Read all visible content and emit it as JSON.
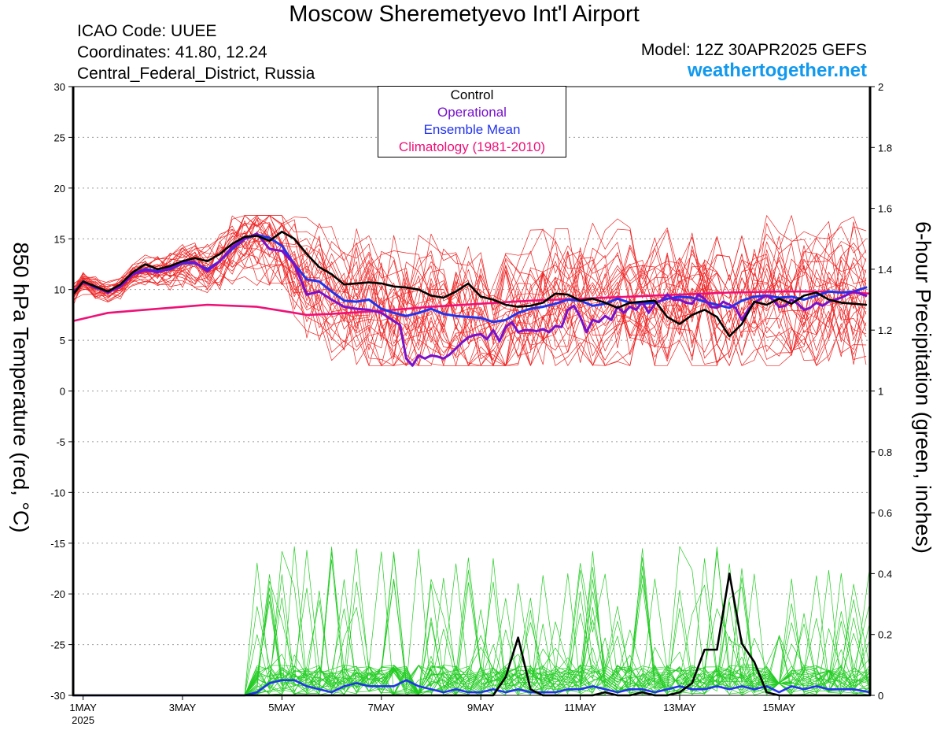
{
  "header": {
    "title": "Moscow Sheremetyevo Int'l Airport",
    "icao": "ICAO Code: UUEE",
    "coords": "Coordinates: 41.80, 12.24",
    "region": "Central_Federal_District, Russia",
    "model": "Model: 12Z 30APR2025 GEFS",
    "site": "weathertogether.net"
  },
  "legend": {
    "control": "Control",
    "operational": "Operational",
    "ensemble_mean": "Ensemble Mean",
    "climatology": "Climatology (1981-2010)"
  },
  "colors": {
    "control": "#000000",
    "operational": "#7711cc",
    "ensemble_mean": "#2233ee",
    "climatology": "#ee1177",
    "members_temp": "#ee2222",
    "members_precip": "#22cc22",
    "site": "#1199ee"
  },
  "chart_data": {
    "type": "line",
    "ylabel": "850 hPa Temperature (red, °C)",
    "y2label": "6-hour Precipitation (green, inches)",
    "xlim": [
      0.8,
      16.83
    ],
    "ylim": [
      -30,
      30
    ],
    "y2lim": [
      0,
      2
    ],
    "x_ticks": [
      {
        "v": 1,
        "label": "1MAY",
        "sub": "2025"
      },
      {
        "v": 3,
        "label": "3MAY"
      },
      {
        "v": 5,
        "label": "5MAY"
      },
      {
        "v": 7,
        "label": "7MAY"
      },
      {
        "v": 9,
        "label": "9MAY"
      },
      {
        "v": 11,
        "label": "11MAY"
      },
      {
        "v": 13,
        "label": "13MAY"
      },
      {
        "v": 15,
        "label": "15MAY"
      }
    ],
    "y_ticks": [
      30,
      25,
      20,
      15,
      10,
      5,
      0,
      -5,
      -10,
      -15,
      -20,
      -25,
      -30
    ],
    "y2_ticks": [
      2,
      1.8,
      1.6,
      1.4,
      1.2,
      1,
      0.8,
      0.6,
      0.4,
      0.2,
      0
    ],
    "grid": true,
    "series": [
      {
        "name": "Control",
        "key": "control",
        "axis": "temp",
        "x": [
          0.8,
          1.0,
          1.25,
          1.5,
          1.75,
          2.0,
          2.25,
          2.5,
          2.75,
          3.0,
          3.25,
          3.5,
          3.75,
          4.0,
          4.25,
          4.5,
          4.75,
          5.0,
          5.25,
          5.5,
          5.75,
          6.0,
          6.25,
          6.5,
          6.75,
          7.0,
          7.25,
          7.5,
          7.75,
          8.0,
          8.25,
          8.5,
          8.75,
          9.0,
          9.25,
          9.5,
          9.75,
          10.0,
          10.25,
          10.5,
          10.75,
          11.0,
          11.25,
          11.5,
          11.75,
          12.0,
          12.25,
          12.5,
          12.75,
          13.0,
          13.25,
          13.5,
          13.75,
          14.0,
          14.25,
          14.5,
          14.75,
          15.0,
          15.25,
          15.5,
          15.75,
          16.0,
          16.25,
          16.5,
          16.75
        ],
        "y": [
          9.5,
          10.8,
          10.3,
          9.8,
          10.5,
          11.7,
          12.5,
          12.0,
          12.3,
          12.8,
          13.1,
          12.8,
          13.5,
          14.5,
          15.2,
          15.3,
          14.8,
          15.7,
          15.0,
          13.5,
          12.2,
          11.5,
          10.5,
          10.6,
          10.7,
          10.6,
          10.3,
          10.2,
          10.0,
          9.4,
          9.2,
          9.8,
          10.6,
          9.3,
          9.0,
          8.5,
          8.3,
          8.4,
          8.7,
          9.6,
          9.5,
          8.9,
          9.1,
          8.7,
          8.2,
          8.7,
          8.8,
          8.9,
          7.3,
          6.6,
          7.5,
          8.0,
          7.3,
          5.4,
          6.6,
          8.8,
          8.5,
          9.1,
          8.6,
          9.4,
          9.7,
          9.0,
          8.7,
          8.6,
          8.5
        ]
      },
      {
        "name": "Operational",
        "key": "operational",
        "axis": "temp",
        "x": [
          0.8,
          1.0,
          1.25,
          1.5,
          1.75,
          2.0,
          2.25,
          2.5,
          2.75,
          3.0,
          3.25,
          3.5,
          3.75,
          4.0,
          4.25,
          4.5,
          4.75,
          5.0,
          5.25,
          5.5,
          5.75,
          6.0,
          6.25,
          6.5,
          6.75,
          7.0,
          7.25,
          7.375,
          7.5,
          7.625,
          7.75,
          7.875,
          8.0,
          8.125,
          8.25,
          8.375,
          8.5,
          8.625,
          8.75,
          8.875,
          9.0,
          9.125,
          9.25,
          9.375,
          9.5,
          9.625,
          9.75,
          9.875,
          10.0,
          10.125,
          10.25,
          10.375,
          10.5,
          10.625,
          10.75,
          10.875,
          11.0,
          11.125,
          11.25,
          11.375,
          11.5,
          11.625,
          11.75,
          11.875,
          12.0,
          12.125,
          12.25,
          12.375,
          12.5,
          12.625,
          12.75,
          12.875,
          13.0,
          13.125,
          13.25,
          13.375,
          13.5,
          13.625,
          13.75,
          13.875,
          14.0,
          14.125,
          14.25,
          14.375,
          14.5,
          14.625,
          14.75,
          14.875,
          15.0,
          15.125,
          15.25,
          15.375,
          15.5,
          15.625,
          15.75,
          15.875,
          16.0,
          16.25,
          16.5,
          16.75
        ],
        "y": [
          9.7,
          10.7,
          10.3,
          9.7,
          10.3,
          11.5,
          11.9,
          11.7,
          12.1,
          12.7,
          12.7,
          11.8,
          12.8,
          14.2,
          15.0,
          15.5,
          14.0,
          13.8,
          12.5,
          9.5,
          9.8,
          9.0,
          8.3,
          8.1,
          8.0,
          7.7,
          6.9,
          6.5,
          3.2,
          2.5,
          3.5,
          3.2,
          3.5,
          3.4,
          3.2,
          3.6,
          4.2,
          4.8,
          5.3,
          5.5,
          5.6,
          5.1,
          6.0,
          4.9,
          6.3,
          6.8,
          5.8,
          6.0,
          6.0,
          5.9,
          6.1,
          5.8,
          6.4,
          6.3,
          8.0,
          8.4,
          7.3,
          5.8,
          7.0,
          6.8,
          7.4,
          7.0,
          8.3,
          7.7,
          8.3,
          8.0,
          8.8,
          7.7,
          8.6,
          8.9,
          9.5,
          9.0,
          9.0,
          8.7,
          8.6,
          9.5,
          9.1,
          8.3,
          8.2,
          8.8,
          8.5,
          8.2,
          7.0,
          8.0,
          8.7,
          9.1,
          9.4,
          9.0,
          8.3,
          8.4,
          9.0,
          8.6,
          8.0,
          8.2,
          8.7,
          8.4,
          8.8,
          9.2,
          9.8,
          9.4
        ]
      },
      {
        "name": "Ensemble Mean",
        "key": "ensemble_mean",
        "axis": "temp",
        "x": [
          0.8,
          1.0,
          1.25,
          1.5,
          1.75,
          2.0,
          2.25,
          2.5,
          2.75,
          3.0,
          3.25,
          3.5,
          3.75,
          4.0,
          4.25,
          4.5,
          4.75,
          5.0,
          5.25,
          5.5,
          5.75,
          6.0,
          6.25,
          6.5,
          6.75,
          7.0,
          7.25,
          7.5,
          7.75,
          8.0,
          8.25,
          8.5,
          8.75,
          9.0,
          9.25,
          9.5,
          9.75,
          10.0,
          10.25,
          10.5,
          10.75,
          11.0,
          11.25,
          11.5,
          11.75,
          12.0,
          12.25,
          12.5,
          12.75,
          13.0,
          13.25,
          13.5,
          13.75,
          14.0,
          14.25,
          14.5,
          14.75,
          15.0,
          15.25,
          15.5,
          15.75,
          16.0,
          16.25,
          16.5,
          16.75
        ],
        "y": [
          9.6,
          10.8,
          10.2,
          9.8,
          10.3,
          11.5,
          12.0,
          11.8,
          12.0,
          12.6,
          12.6,
          12.0,
          12.8,
          14.0,
          15.0,
          15.4,
          15.1,
          14.3,
          12.5,
          11.0,
          10.8,
          9.8,
          8.9,
          8.8,
          9.0,
          8.1,
          7.7,
          7.4,
          7.7,
          8.1,
          7.6,
          7.4,
          7.3,
          7.2,
          6.8,
          7.0,
          7.7,
          8.1,
          8.3,
          8.6,
          9.0,
          8.9,
          8.4,
          8.6,
          9.1,
          8.7,
          8.6,
          8.7,
          9.1,
          9.3,
          9.2,
          8.8,
          8.5,
          8.2,
          8.9,
          9.3,
          9.4,
          9.2,
          9.3,
          9.0,
          9.4,
          9.8,
          9.7,
          9.8,
          10.2
        ]
      },
      {
        "name": "Climatology (1981-2010)",
        "key": "climatology",
        "axis": "temp",
        "x": [
          0.8,
          1.5,
          2.0,
          3.0,
          3.5,
          4.5,
          5.0,
          5.5,
          6.0,
          7.0,
          8.0,
          9.0,
          10.0,
          11.0,
          12.0,
          13.0,
          14.0,
          15.0,
          16.0,
          16.83
        ],
        "y": [
          6.9,
          7.7,
          7.9,
          8.3,
          8.5,
          8.3,
          7.9,
          7.5,
          7.6,
          7.9,
          8.3,
          8.6,
          8.9,
          9.1,
          9.3,
          9.5,
          9.7,
          9.8,
          9.8,
          9.6
        ]
      },
      {
        "name": "Control",
        "key": "control_precip",
        "axis": "precip",
        "x": [
          0.8,
          9.25,
          9.5,
          9.75,
          10.0,
          10.25,
          10.5,
          10.75,
          11.0,
          11.25,
          11.5,
          11.75,
          12.0,
          12.25,
          12.5,
          12.75,
          13.0,
          13.25,
          13.5,
          13.75,
          14.0,
          14.25,
          14.5,
          14.75,
          15.0,
          15.25,
          15.5,
          15.75,
          16.0,
          16.5,
          16.83
        ],
        "y": [
          0,
          0,
          0.06,
          0.19,
          0.02,
          0,
          0,
          0,
          0,
          0,
          0.01,
          0,
          0,
          0.01,
          0,
          0,
          0.01,
          0.04,
          0.15,
          0.15,
          0.4,
          0.17,
          0.11,
          0.01,
          0,
          0,
          0,
          0,
          0,
          0,
          0
        ]
      },
      {
        "name": "Ensemble Mean",
        "key": "ensemble_mean_precip",
        "axis": "precip",
        "x": [
          0.8,
          4.25,
          4.5,
          4.75,
          5.0,
          5.25,
          5.5,
          5.75,
          6.0,
          6.25,
          6.5,
          6.75,
          7.0,
          7.25,
          7.5,
          7.75,
          8.0,
          8.25,
          8.5,
          8.75,
          9.0,
          9.25,
          9.5,
          9.75,
          10.0,
          10.25,
          10.5,
          10.75,
          11.0,
          11.25,
          11.5,
          11.75,
          12.0,
          12.25,
          12.5,
          12.75,
          13.0,
          13.25,
          13.5,
          13.75,
          14.0,
          14.25,
          14.5,
          14.75,
          15.0,
          15.25,
          15.5,
          15.75,
          16.0,
          16.25,
          16.5,
          16.83
        ],
        "y": [
          0,
          0,
          0.01,
          0.04,
          0.05,
          0.05,
          0.03,
          0.02,
          0.01,
          0.03,
          0.04,
          0.03,
          0.03,
          0.03,
          0.05,
          0.03,
          0.02,
          0.01,
          0.02,
          0.01,
          0.01,
          0.02,
          0.01,
          0.02,
          0.01,
          0.01,
          0.01,
          0.02,
          0.02,
          0.03,
          0.02,
          0.01,
          0.02,
          0.02,
          0.01,
          0.02,
          0.03,
          0.02,
          0.02,
          0.03,
          0.02,
          0.03,
          0.02,
          0.03,
          0.01,
          0.03,
          0.02,
          0.03,
          0.02,
          0.02,
          0.02,
          0.01
        ]
      }
    ],
    "member_count": 30,
    "members_temp_band": {
      "min": 2.5,
      "max": 17.3
    },
    "members_precip_max": 0.49
  }
}
